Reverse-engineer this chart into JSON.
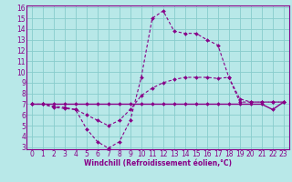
{
  "xlabel": "Windchill (Refroidissement éolien,°C)",
  "x_values": [
    0,
    1,
    2,
    3,
    4,
    5,
    6,
    7,
    8,
    9,
    10,
    11,
    12,
    13,
    14,
    15,
    16,
    17,
    18,
    19,
    20,
    21,
    22,
    23
  ],
  "line1": [
    7.0,
    7.0,
    6.7,
    6.6,
    6.5,
    4.7,
    3.5,
    2.9,
    3.5,
    5.5,
    9.5,
    15.0,
    15.7,
    13.8,
    13.6,
    13.6,
    13.0,
    12.5,
    9.5,
    7.2,
    7.2,
    7.2,
    7.2,
    7.2
  ],
  "line2": [
    7.0,
    7.0,
    6.8,
    6.7,
    6.5,
    6.0,
    5.5,
    5.0,
    5.5,
    6.5,
    7.8,
    8.5,
    9.0,
    9.3,
    9.5,
    9.5,
    9.5,
    9.4,
    9.5,
    7.5,
    7.2,
    7.2,
    7.2,
    7.2
  ],
  "line3": [
    7.0,
    7.0,
    7.0,
    7.0,
    7.0,
    7.0,
    7.0,
    7.0,
    7.0,
    7.0,
    7.0,
    7.0,
    7.0,
    7.0,
    7.0,
    7.0,
    7.0,
    7.0,
    7.0,
    7.0,
    7.0,
    7.0,
    6.5,
    7.2
  ],
  "line_color": "#880088",
  "bg_color": "#b8e8e8",
  "grid_color": "#88cccc",
  "ylim": [
    3,
    16
  ],
  "xlim": [
    -0.5,
    23.5
  ],
  "yticks": [
    3,
    4,
    5,
    6,
    7,
    8,
    9,
    10,
    11,
    12,
    13,
    14,
    15,
    16
  ],
  "xticks": [
    0,
    1,
    2,
    3,
    4,
    5,
    6,
    7,
    8,
    9,
    10,
    11,
    12,
    13,
    14,
    15,
    16,
    17,
    18,
    19,
    20,
    21,
    22,
    23
  ],
  "tick_fontsize": 5.5,
  "xlabel_fontsize": 5.5
}
